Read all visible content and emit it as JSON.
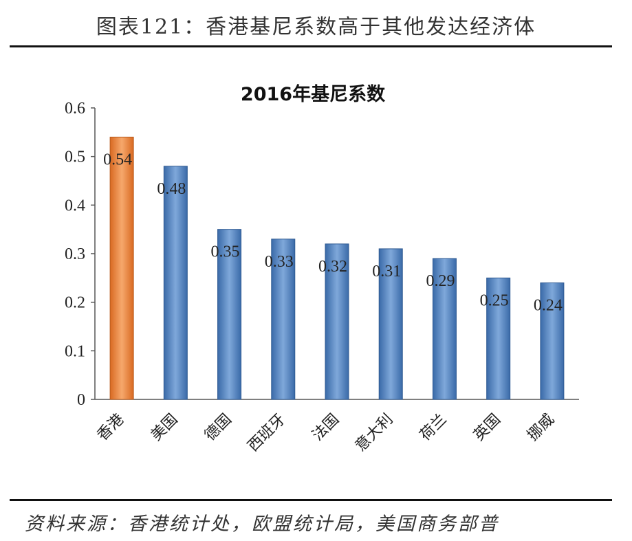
{
  "figure": {
    "title": "图表121：香港基尼系数高于其他发达经济体",
    "source": "资料来源：香港统计处，欧盟统计局，美国商务部普"
  },
  "chart_data": {
    "type": "bar",
    "title": "2016年基尼系数",
    "categories": [
      "香港",
      "美国",
      "德国",
      "西班牙",
      "法国",
      "意大利",
      "荷兰",
      "英国",
      "挪威"
    ],
    "values": [
      0.54,
      0.48,
      0.35,
      0.33,
      0.32,
      0.31,
      0.29,
      0.25,
      0.24
    ],
    "data_labels": [
      "0.54",
      "0.48",
      "0.35",
      "0.33",
      "0.32",
      "0.31",
      "0.29",
      "0.25",
      "0.24"
    ],
    "ylim": [
      0,
      0.6
    ],
    "yticks": [
      0,
      0.1,
      0.2,
      0.3,
      0.4,
      0.5,
      0.6
    ],
    "ytick_labels": [
      "0",
      "0.1",
      "0.2",
      "0.3",
      "0.4",
      "0.5",
      "0.6"
    ],
    "xlabel": "",
    "ylabel": "",
    "grid": false,
    "legend": "none",
    "colors": {
      "highlight": "#E8803A",
      "default": "#4A7EBB",
      "axis": "#555555"
    }
  }
}
